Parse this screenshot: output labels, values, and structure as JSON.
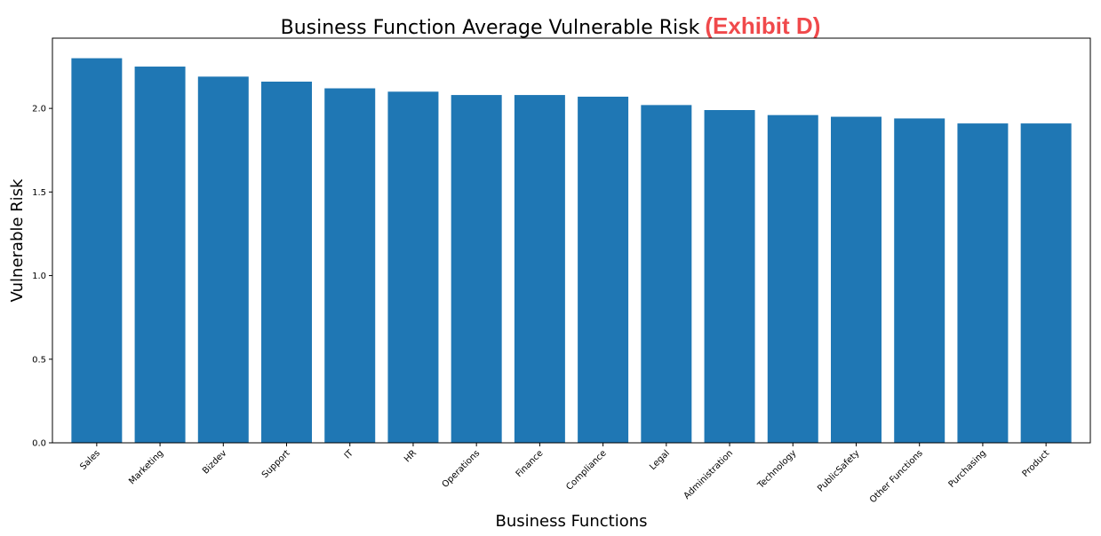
{
  "title": "Business Function Average Vulnerable Risk",
  "exhibit": "(Exhibit D)",
  "colors": {
    "bar": "#1f77b4",
    "exhibit": "#f0494b",
    "axis": "#000000"
  },
  "chart_data": {
    "type": "bar",
    "title": "Business Function Average Vulnerable Risk",
    "xlabel": "Business Functions",
    "ylabel": "Vulnerable Risk",
    "categories": [
      "Sales",
      "Marketing",
      "Bizdev",
      "Support",
      "IT",
      "HR",
      "Operations",
      "Finance",
      "Compliance",
      "Legal",
      "Administration",
      "Technology",
      "PublicSafety",
      "Other Functions",
      "Purchasing",
      "Product"
    ],
    "values": [
      2.3,
      2.25,
      2.19,
      2.16,
      2.12,
      2.1,
      2.08,
      2.08,
      2.07,
      2.02,
      1.99,
      1.96,
      1.95,
      1.94,
      1.91,
      1.91
    ],
    "ylim": [
      0,
      2.42
    ],
    "yticks": [
      "0.0",
      "0.5",
      "1.0",
      "1.5",
      "2.0"
    ],
    "grid": false,
    "legend": "none"
  }
}
